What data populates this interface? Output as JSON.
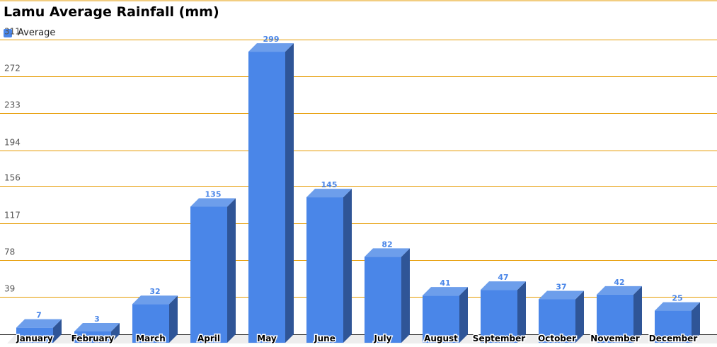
{
  "chart_data": {
    "type": "bar",
    "title": "Lamu Average Rainfall (mm)",
    "xlabel": "",
    "ylabel": "",
    "categories": [
      "January",
      "February",
      "March",
      "April",
      "May",
      "June",
      "July",
      "August",
      "September",
      "October",
      "November",
      "December"
    ],
    "series": [
      {
        "name": "Average",
        "values": [
          7,
          3,
          32,
          135,
          299,
          145,
          82,
          41,
          47,
          37,
          42,
          25
        ]
      }
    ],
    "y_ticks": [
      "39",
      "78",
      "117",
      "156",
      "194",
      "233",
      "272",
      "311"
    ],
    "ylim": [
      0,
      350
    ],
    "grid": true,
    "legend_position": "top-left",
    "bar_style": "3d",
    "colors": {
      "bar_front": "#4a86e8",
      "bar_top": "#6d9eeb",
      "bar_side": "#2f5597",
      "gridline": "#e69b00",
      "value_label": "#4a86e8",
      "floor": "#eeeeee"
    }
  }
}
